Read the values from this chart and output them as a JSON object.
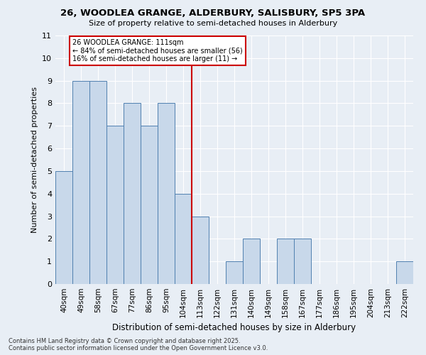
{
  "title1": "26, WOODLEA GRANGE, ALDERBURY, SALISBURY, SP5 3PA",
  "title2": "Size of property relative to semi-detached houses in Alderbury",
  "xlabel": "Distribution of semi-detached houses by size in Alderbury",
  "ylabel": "Number of semi-detached properties",
  "footnote1": "Contains HM Land Registry data © Crown copyright and database right 2025.",
  "footnote2": "Contains public sector information licensed under the Open Government Licence v3.0.",
  "categories": [
    "40sqm",
    "49sqm",
    "58sqm",
    "67sqm",
    "77sqm",
    "86sqm",
    "95sqm",
    "104sqm",
    "113sqm",
    "122sqm",
    "131sqm",
    "140sqm",
    "149sqm",
    "158sqm",
    "167sqm",
    "177sqm",
    "186sqm",
    "195sqm",
    "204sqm",
    "213sqm",
    "222sqm"
  ],
  "values": [
    5,
    9,
    9,
    7,
    8,
    7,
    8,
    4,
    3,
    0,
    1,
    2,
    0,
    2,
    2,
    0,
    0,
    0,
    0,
    0,
    1
  ],
  "bar_color": "#c8d8ea",
  "bar_edge_color": "#5080b0",
  "bg_color": "#e8eef5",
  "grid_color": "#ffffff",
  "ref_line_index": 7.5,
  "ref_line_color": "#cc0000",
  "annotation_title": "26 WOODLEA GRANGE: 111sqm",
  "annotation_line1": "← 84% of semi-detached houses are smaller (56)",
  "annotation_line2": "16% of semi-detached houses are larger (11) →",
  "annotation_box_color": "#cc0000",
  "ylim": [
    0,
    11
  ],
  "yticks": [
    0,
    1,
    2,
    3,
    4,
    5,
    6,
    7,
    8,
    9,
    10,
    11
  ]
}
